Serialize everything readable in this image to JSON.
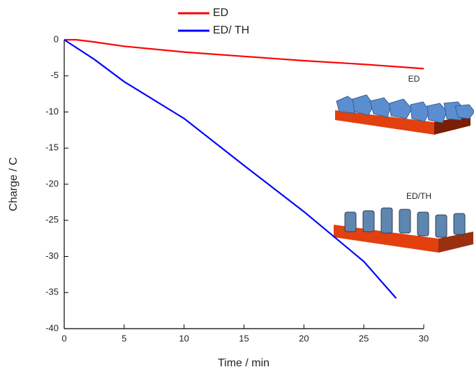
{
  "chart_data": {
    "type": "line",
    "xlabel": "Time / min",
    "ylabel": "Charge / C",
    "xlim": [
      0,
      30
    ],
    "ylim": [
      -40,
      0
    ],
    "xticks": [
      0,
      5,
      10,
      15,
      20,
      25,
      30
    ],
    "yticks": [
      -40,
      -35,
      -30,
      -25,
      -20,
      -15,
      -10,
      -5,
      0
    ],
    "series": [
      {
        "name": "ED",
        "color": "#ff0000",
        "x": [
          0,
          1,
          2.5,
          5,
          10,
          15,
          20,
          25,
          30
        ],
        "values": [
          0,
          0,
          -0.3,
          -0.9,
          -1.7,
          -2.3,
          -2.9,
          -3.4,
          -4.0
        ]
      },
      {
        "name": "ED/ TH",
        "color": "#0000ff",
        "x": [
          0,
          2.5,
          5,
          10,
          15,
          20,
          25,
          27.7
        ],
        "values": [
          0,
          -2.7,
          -5.8,
          -10.9,
          -17.4,
          -23.8,
          -30.7,
          -35.8
        ]
      }
    ],
    "annotations": [
      "ED",
      "ED/TH"
    ]
  }
}
